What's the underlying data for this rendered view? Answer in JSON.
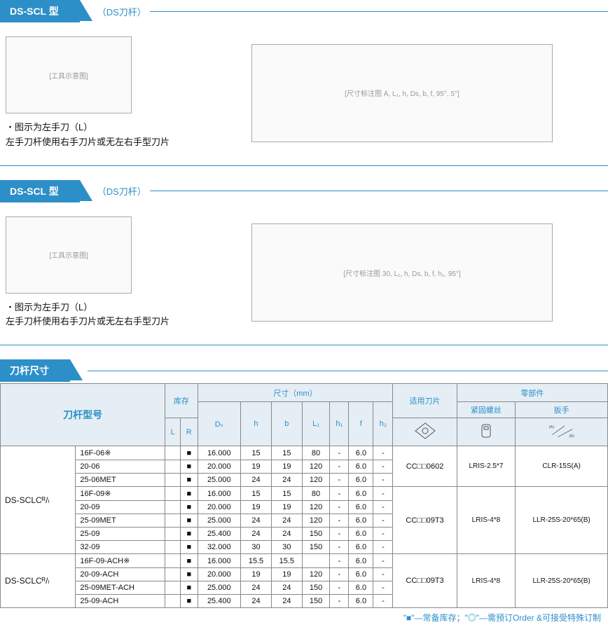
{
  "section1": {
    "title": "DS-SCL 型",
    "subtitle": "（DS刀杆）",
    "note_line1": "・图示为左手刀（L）",
    "note_line2": "左手刀杆使用右手刀片或无左右手型刀片",
    "diag_left_placeholder": "[工具示意图]",
    "diag_right_placeholder": "[尺寸标注图 A, L₁, h, Ds, b, f, 95°, 5°]"
  },
  "section2": {
    "title": "DS-SCL 型",
    "subtitle": "（DS刀杆）",
    "note_line1": "・图示为左手刀（L）",
    "note_line2": "左手刀杆使用右手刀片或无左右手型刀片",
    "diag_left_placeholder": "[工具示意图]",
    "diag_right_placeholder": "[尺寸标注图 30, L₁, h, Ds, b, f, h₁, 95°]"
  },
  "section3": {
    "title": "刀杆尺寸"
  },
  "headers": {
    "model": "刀杆型号",
    "stock": "库存",
    "dim": "尺寸（mm）",
    "insert": "适用刀片",
    "parts": "零部件",
    "screw": "紧固螺丝",
    "wrench": "扳手",
    "L": "L",
    "R": "R",
    "Ds": "Dₛ",
    "h": "h",
    "b": "b",
    "L1": "L₁",
    "h1": "h₁",
    "f": "f",
    "h2": "h₂",
    "wrench_a": "(A)",
    "wrench_b": "(B)"
  },
  "groups": [
    {
      "model_label": "DS-SCLCᴿ/ₗ",
      "blocks": [
        {
          "insert": "CC□□0602",
          "screw": "LRIS-2.5*7",
          "wrench": "CLR-15S(A)",
          "rows": [
            {
              "code": "16F-06※",
              "L": "",
              "R": "■",
              "Ds": "16.000",
              "h": "15",
              "b": "15",
              "L1": "80",
              "h1": "-",
              "f": "6.0",
              "h2": "-"
            },
            {
              "code": "20-06",
              "L": "",
              "R": "■",
              "Ds": "20.000",
              "h": "19",
              "b": "19",
              "L1": "120",
              "h1": "-",
              "f": "6.0",
              "h2": "-"
            },
            {
              "code": "25-06MET",
              "L": "",
              "R": "■",
              "Ds": "25.000",
              "h": "24",
              "b": "24",
              "L1": "120",
              "h1": "-",
              "f": "6.0",
              "h2": "-"
            }
          ]
        },
        {
          "insert": "CC□□09T3",
          "screw": "LRIS-4*8",
          "wrench": "LLR-25S-20*65(B)",
          "rows": [
            {
              "code": "16F-09※",
              "L": "",
              "R": "■",
              "Ds": "16.000",
              "h": "15",
              "b": "15",
              "L1": "80",
              "h1": "-",
              "f": "6.0",
              "h2": "-"
            },
            {
              "code": "20-09",
              "L": "",
              "R": "■",
              "Ds": "20.000",
              "h": "19",
              "b": "19",
              "L1": "120",
              "h1": "-",
              "f": "6.0",
              "h2": "-"
            },
            {
              "code": "25-09MET",
              "L": "",
              "R": "■",
              "Ds": "25.000",
              "h": "24",
              "b": "24",
              "L1": "120",
              "h1": "-",
              "f": "6.0",
              "h2": "-"
            },
            {
              "code": "25-09",
              "L": "",
              "R": "■",
              "Ds": "25.400",
              "h": "24",
              "b": "24",
              "L1": "150",
              "h1": "-",
              "f": "6.0",
              "h2": "-"
            },
            {
              "code": "32-09",
              "L": "",
              "R": "■",
              "Ds": "32.000",
              "h": "30",
              "b": "30",
              "L1": "150",
              "h1": "-",
              "f": "6.0",
              "h2": "-"
            }
          ]
        }
      ]
    },
    {
      "model_label": "DS-SCLCᴿ/ₗ",
      "blocks": [
        {
          "insert": "CC□□09T3",
          "screw": "LRIS-4*8",
          "wrench": "LLR-25S-20*65(B)",
          "rows": [
            {
              "code": "16F-09-ACH※",
              "L": "",
              "R": "■",
              "Ds": "16.000",
              "h": "15.5",
              "b": "15.5",
              "L1": "",
              "h1": "-",
              "f": "6.0",
              "h2": "-"
            },
            {
              "code": "20-09-ACH",
              "L": "",
              "R": "■",
              "Ds": "20.000",
              "h": "19",
              "b": "19",
              "L1": "120",
              "h1": "-",
              "f": "6.0",
              "h2": "-"
            },
            {
              "code": "25-09MET-ACH",
              "L": "",
              "R": "■",
              "Ds": "25.000",
              "h": "24",
              "b": "24",
              "L1": "150",
              "h1": "-",
              "f": "6.0",
              "h2": "-"
            },
            {
              "code": "25-09-ACH",
              "L": "",
              "R": "■",
              "Ds": "25.400",
              "h": "24",
              "b": "24",
              "L1": "150",
              "h1": "-",
              "f": "6.0",
              "h2": "-"
            }
          ]
        }
      ]
    }
  ],
  "footer_note": "\"■\"—常备库存；\"◎\"—需预订Order  &可接受特殊订制",
  "colors": {
    "primary": "#2d8fc8",
    "header_bg": "#e5eef5",
    "grey_bg": "#f0f0f0",
    "border": "#888888",
    "text": "#111111"
  }
}
